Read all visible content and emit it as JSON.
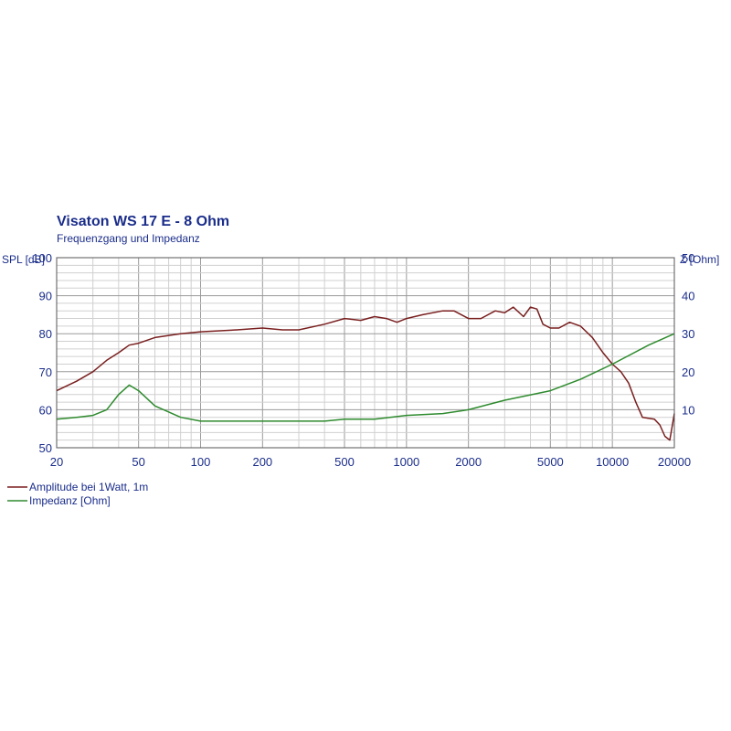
{
  "chart_data": {
    "type": "line",
    "title": "Visaton WS 17 E - 8 Ohm",
    "subtitle": "Frequenzgang und Impedanz",
    "xscale": "log",
    "xlim": [
      20,
      20000
    ],
    "x_ticks": [
      20,
      50,
      100,
      200,
      500,
      1000,
      2000,
      5000,
      10000,
      20000
    ],
    "ylabel_left": "SPL [dB]",
    "ylim_left": [
      50,
      100
    ],
    "y_ticks_left": [
      50,
      60,
      70,
      80,
      90,
      100
    ],
    "ylabel_right": "Z [Ohm]",
    "ylim_right": [
      0,
      50
    ],
    "y_ticks_right": [
      10,
      20,
      30,
      40,
      50
    ],
    "grid": true,
    "legend_position": "bottom-left",
    "series": [
      {
        "name": "Amplitude bei 1Watt, 1m",
        "axis": "left",
        "color": "#7a1f1f",
        "points": [
          [
            20,
            65
          ],
          [
            25,
            67.5
          ],
          [
            30,
            70
          ],
          [
            35,
            73
          ],
          [
            40,
            75
          ],
          [
            45,
            77
          ],
          [
            50,
            77.5
          ],
          [
            60,
            79
          ],
          [
            80,
            80
          ],
          [
            100,
            80.5
          ],
          [
            150,
            81
          ],
          [
            200,
            81.5
          ],
          [
            250,
            81
          ],
          [
            300,
            81
          ],
          [
            400,
            82.5
          ],
          [
            500,
            84
          ],
          [
            600,
            83.5
          ],
          [
            700,
            84.5
          ],
          [
            800,
            84
          ],
          [
            900,
            83
          ],
          [
            1000,
            84
          ],
          [
            1200,
            85
          ],
          [
            1500,
            86
          ],
          [
            1700,
            86
          ],
          [
            2000,
            84
          ],
          [
            2300,
            84
          ],
          [
            2700,
            86
          ],
          [
            3000,
            85.5
          ],
          [
            3300,
            87
          ],
          [
            3700,
            84.5
          ],
          [
            4000,
            87
          ],
          [
            4300,
            86.5
          ],
          [
            4600,
            82.5
          ],
          [
            5000,
            81.5
          ],
          [
            5500,
            81.5
          ],
          [
            6200,
            83
          ],
          [
            7000,
            82
          ],
          [
            8000,
            79
          ],
          [
            9000,
            75
          ],
          [
            10000,
            72
          ],
          [
            11000,
            70
          ],
          [
            12000,
            67
          ],
          [
            13000,
            62
          ],
          [
            14000,
            58
          ],
          [
            16000,
            57.5
          ],
          [
            17000,
            56
          ],
          [
            18000,
            53
          ],
          [
            19000,
            52
          ],
          [
            20000,
            59
          ]
        ]
      },
      {
        "name": "Impedanz [Ohm]",
        "axis": "right",
        "color": "#2e8b2e",
        "points": [
          [
            20,
            7.5
          ],
          [
            25,
            8
          ],
          [
            30,
            8.5
          ],
          [
            35,
            10
          ],
          [
            40,
            14
          ],
          [
            45,
            16.5
          ],
          [
            50,
            15
          ],
          [
            60,
            11
          ],
          [
            80,
            8
          ],
          [
            100,
            7
          ],
          [
            150,
            7
          ],
          [
            200,
            7
          ],
          [
            300,
            7
          ],
          [
            400,
            7
          ],
          [
            500,
            7.5
          ],
          [
            700,
            7.5
          ],
          [
            1000,
            8.5
          ],
          [
            1500,
            9
          ],
          [
            2000,
            10
          ],
          [
            3000,
            12.5
          ],
          [
            5000,
            15
          ],
          [
            7000,
            18
          ],
          [
            10000,
            22
          ],
          [
            15000,
            27
          ],
          [
            20000,
            30
          ]
        ]
      }
    ]
  }
}
